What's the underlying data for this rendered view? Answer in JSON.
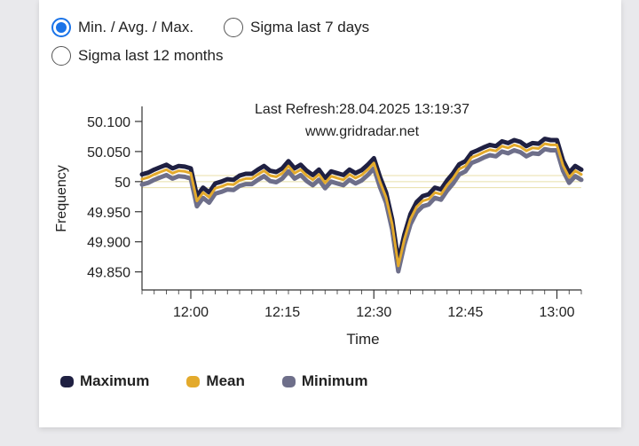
{
  "options": [
    {
      "label": "Min. / Avg. / Max.",
      "checked": true
    },
    {
      "label": "Sigma last 7 days",
      "checked": false
    },
    {
      "label": "Sigma last 12 months",
      "checked": false
    }
  ],
  "colors": {
    "maximum": "#1f2042",
    "mean": "#e3aa2c",
    "minimum": "#6e6f8a",
    "band": "#e8dfa8",
    "accent": "#1a73e8"
  },
  "chart_data": {
    "type": "line",
    "title": "Last Refresh:28.04.2025 13:19:37",
    "subtitle": "www.gridradar.net",
    "xlabel": "Time",
    "ylabel": "Frequency",
    "ylim": [
      49.82,
      50.125
    ],
    "xlim": [
      "11:52",
      "13:04"
    ],
    "x_ticks": [
      "12:00",
      "12:15",
      "12:30",
      "12:45",
      "13:00"
    ],
    "y_ticks": [
      "50.100",
      "50.050",
      "50",
      "49.950",
      "49.900",
      "49.850"
    ],
    "reference_lines": [
      50.01,
      50.0,
      49.99
    ],
    "legend_position": "bottom",
    "x": [
      "11:52",
      "11:53",
      "11:54",
      "11:55",
      "11:56",
      "11:57",
      "11:58",
      "11:59",
      "12:00",
      "12:01",
      "12:02",
      "12:03",
      "12:04",
      "12:05",
      "12:06",
      "12:07",
      "12:08",
      "12:09",
      "12:10",
      "12:11",
      "12:12",
      "12:13",
      "12:14",
      "12:15",
      "12:16",
      "12:17",
      "12:18",
      "12:19",
      "12:20",
      "12:21",
      "12:22",
      "12:23",
      "12:24",
      "12:25",
      "12:26",
      "12:27",
      "12:28",
      "12:29",
      "12:30",
      "12:31",
      "12:32",
      "12:33",
      "12:34",
      "12:35",
      "12:36",
      "12:37",
      "12:38",
      "12:39",
      "12:40",
      "12:41",
      "12:42",
      "12:43",
      "12:44",
      "12:45",
      "12:46",
      "12:47",
      "12:48",
      "12:49",
      "12:50",
      "12:51",
      "12:52",
      "12:53",
      "12:54",
      "12:55",
      "12:56",
      "12:57",
      "12:58",
      "12:59",
      "13:00",
      "13:01",
      "13:02",
      "13:03",
      "13:04"
    ],
    "series": [
      {
        "name": "Maximum",
        "color": "#1f2042",
        "values": [
          50.012,
          50.015,
          50.02,
          50.024,
          50.028,
          50.022,
          50.026,
          50.025,
          50.022,
          49.976,
          49.99,
          49.982,
          49.997,
          50.0,
          50.004,
          50.003,
          50.01,
          50.013,
          50.013,
          50.02,
          50.026,
          50.018,
          50.016,
          50.022,
          50.034,
          50.022,
          50.028,
          50.018,
          50.011,
          50.02,
          50.006,
          50.017,
          50.014,
          50.011,
          50.02,
          50.014,
          50.019,
          50.028,
          50.039,
          50.008,
          49.982,
          49.937,
          49.868,
          49.912,
          49.946,
          49.966,
          49.976,
          49.979,
          49.99,
          49.987,
          50.002,
          50.014,
          50.029,
          50.034,
          50.048,
          50.052,
          50.057,
          50.061,
          50.059,
          50.067,
          50.064,
          50.069,
          50.066,
          50.059,
          50.064,
          50.063,
          50.071,
          50.069,
          50.069,
          50.035,
          50.015,
          50.026,
          50.02
        ]
      },
      {
        "name": "Mean",
        "color": "#e3aa2c",
        "values": [
          50.004,
          50.007,
          50.012,
          50.016,
          50.02,
          50.014,
          50.018,
          50.017,
          50.014,
          49.968,
          49.982,
          49.974,
          49.989,
          49.992,
          49.996,
          49.995,
          50.002,
          50.005,
          50.005,
          50.012,
          50.018,
          50.01,
          50.008,
          50.014,
          50.026,
          50.014,
          50.02,
          50.01,
          50.003,
          50.012,
          49.998,
          50.009,
          50.006,
          50.003,
          50.012,
          50.006,
          50.011,
          50.02,
          50.031,
          50.0,
          49.974,
          49.929,
          49.86,
          49.904,
          49.938,
          49.958,
          49.968,
          49.971,
          49.982,
          49.979,
          49.994,
          50.006,
          50.021,
          50.026,
          50.04,
          50.044,
          50.049,
          50.053,
          50.051,
          50.059,
          50.056,
          50.061,
          50.058,
          50.051,
          50.056,
          50.055,
          50.063,
          50.061,
          50.061,
          50.027,
          50.007,
          50.018,
          50.012
        ]
      },
      {
        "name": "Minimum",
        "color": "#6e6f8a",
        "values": [
          49.995,
          49.998,
          50.003,
          50.007,
          50.011,
          50.005,
          50.009,
          50.008,
          50.005,
          49.959,
          49.973,
          49.965,
          49.98,
          49.983,
          49.987,
          49.986,
          49.993,
          49.996,
          49.996,
          50.003,
          50.009,
          50.001,
          49.999,
          50.005,
          50.017,
          50.005,
          50.011,
          50.001,
          49.994,
          50.003,
          49.989,
          50.0,
          49.997,
          49.994,
          50.003,
          49.997,
          50.002,
          50.011,
          50.022,
          49.991,
          49.965,
          49.92,
          49.851,
          49.895,
          49.929,
          49.949,
          49.959,
          49.962,
          49.973,
          49.97,
          49.985,
          49.997,
          50.012,
          50.017,
          50.031,
          50.035,
          50.04,
          50.044,
          50.042,
          50.05,
          50.047,
          50.052,
          50.049,
          50.042,
          50.047,
          50.046,
          50.054,
          50.052,
          50.052,
          50.018,
          49.998,
          50.009,
          50.003
        ]
      }
    ]
  }
}
